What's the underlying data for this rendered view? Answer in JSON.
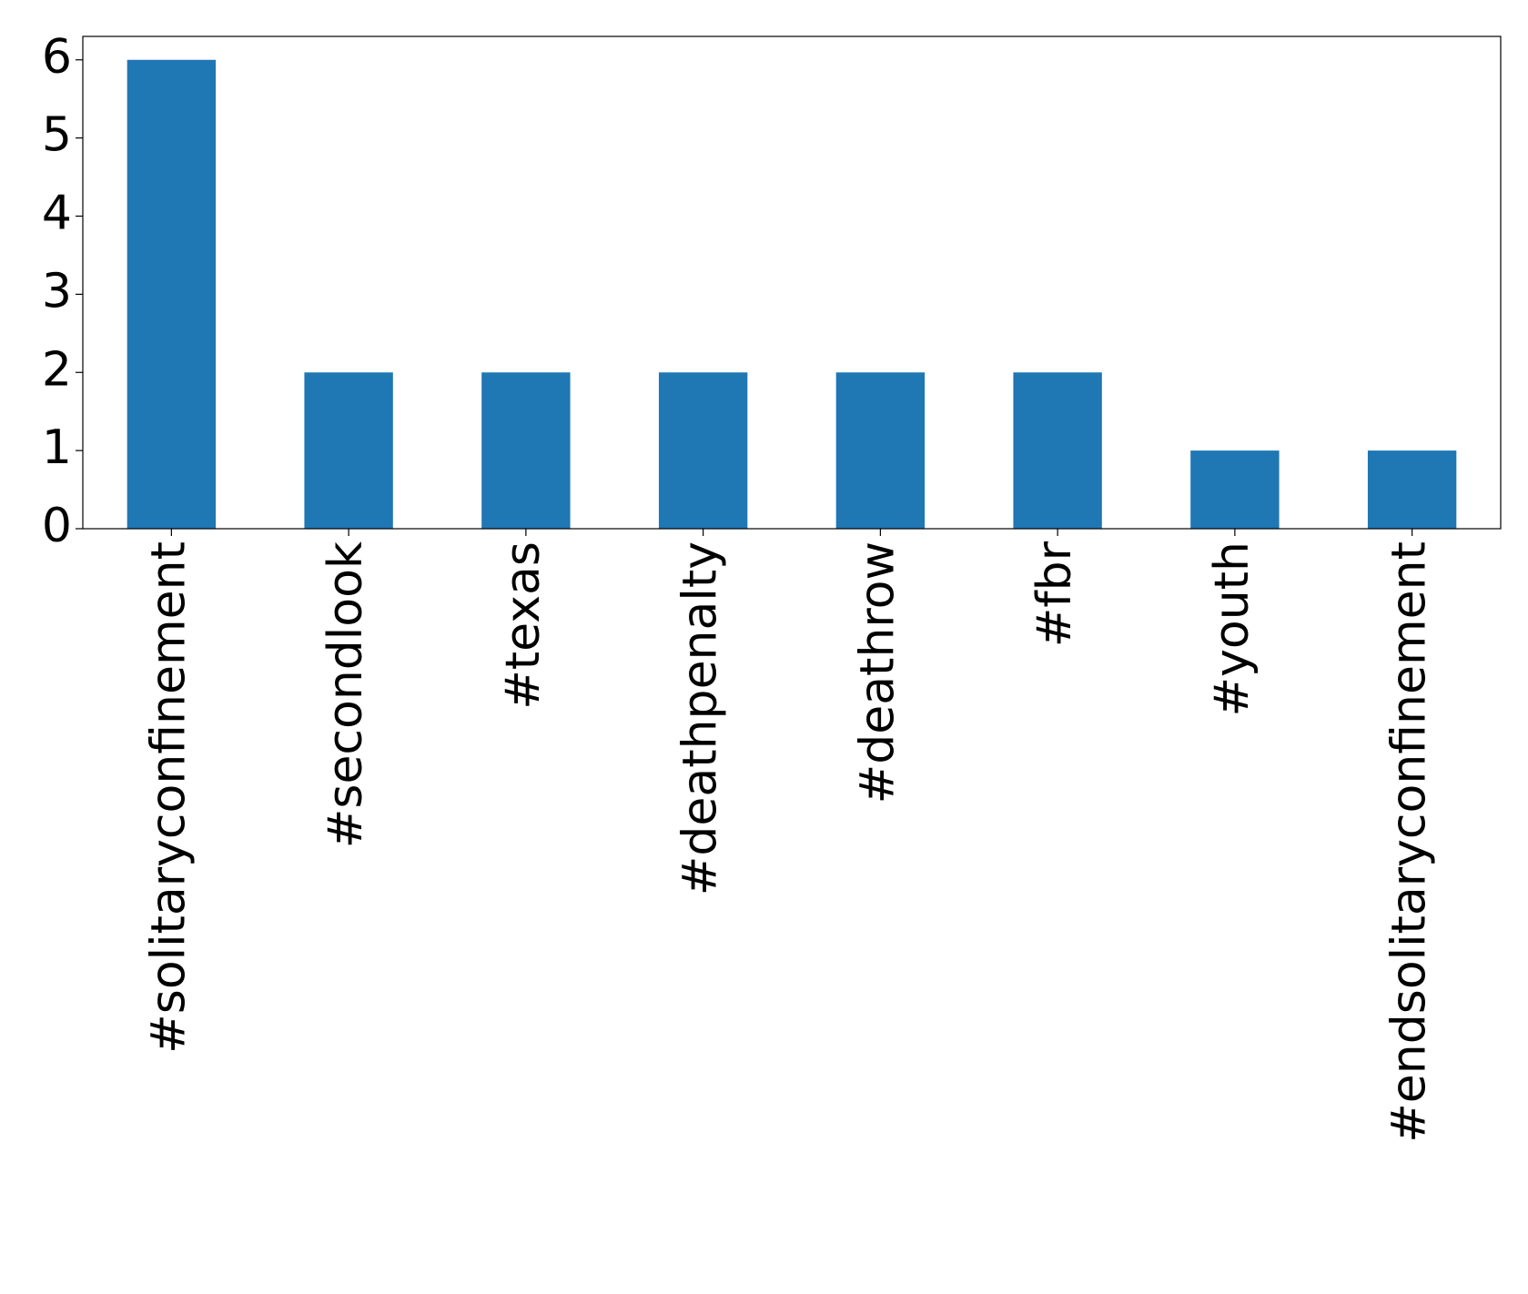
{
  "chart_data": {
    "type": "bar",
    "categories": [
      "#solitaryconfinement",
      "#secondlook",
      "#texas",
      "#deathpenalty",
      "#deathrow",
      "#fbr",
      "#youth",
      "#endsolitaryconfinement"
    ],
    "values": [
      6,
      2,
      2,
      2,
      2,
      2,
      1,
      1
    ],
    "color": "#1f77b4",
    "ylim": [
      0,
      6.3
    ],
    "yticks": [
      0,
      1,
      2,
      3,
      4,
      5,
      6
    ],
    "grid": false
  }
}
